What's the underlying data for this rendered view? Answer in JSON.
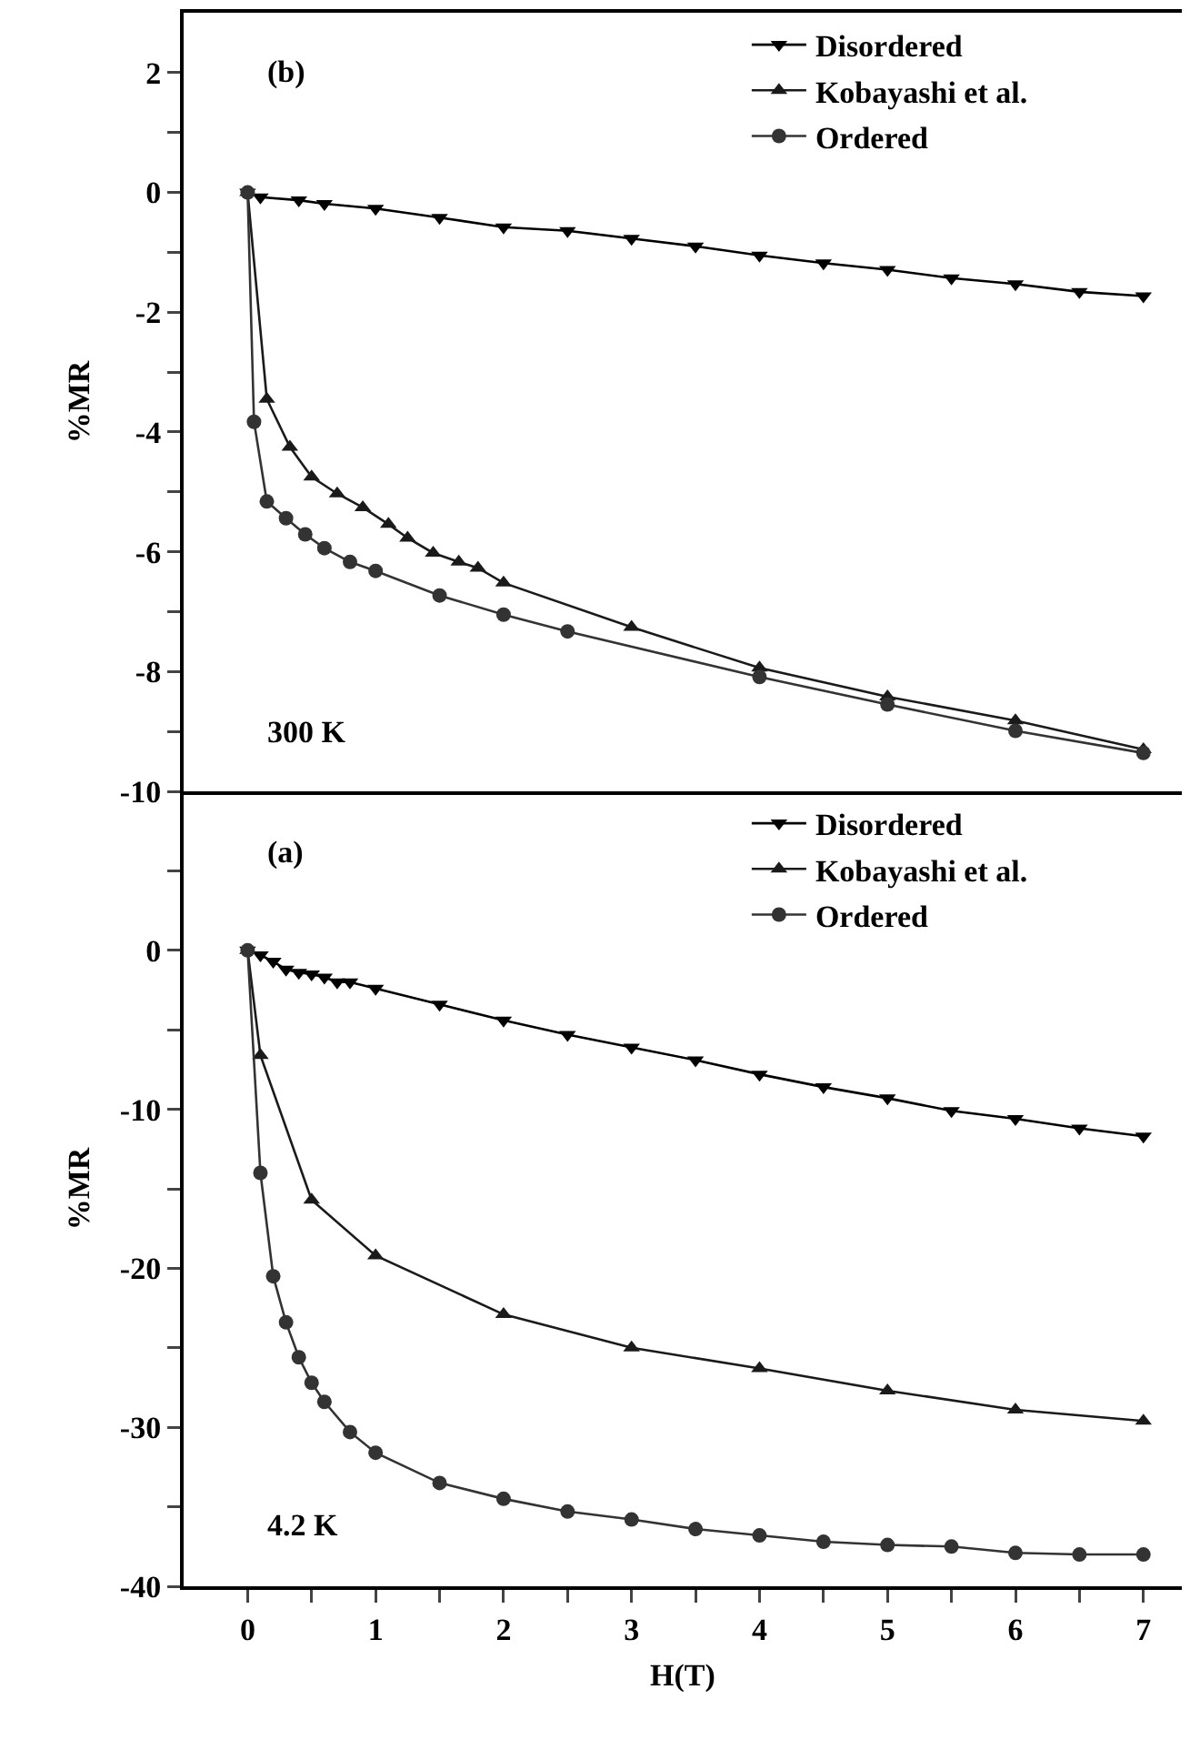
{
  "chart_data": [
    {
      "type": "line",
      "ylabel": "%MR",
      "annotations": [
        "(b)",
        "300 K"
      ],
      "xlim": [
        -0.5,
        7.3
      ],
      "xticks": [
        0,
        1,
        2,
        3,
        4,
        5,
        6,
        7
      ],
      "ylim": [
        -10,
        3
      ],
      "yticks": [
        -10,
        {
          "value": -9,
          "label": null
        },
        -8,
        {
          "value": -7,
          "label": null
        },
        -6,
        {
          "value": -5,
          "label": null
        },
        -4,
        {
          "value": -3,
          "label": null
        },
        -2,
        {
          "value": -1,
          "label": null
        },
        0,
        {
          "value": 1,
          "label": null
        },
        2
      ],
      "tick_labels": "y",
      "grid": false,
      "legend": "top right",
      "line_style": "solid",
      "series": [
        {
          "name": "Disordered",
          "color": "#000000",
          "marker": "triangle-down",
          "x": [
            0,
            0.1,
            0.4,
            0.6,
            1,
            1.5,
            2,
            2.5,
            3,
            3.5,
            4,
            4.5,
            5,
            5.5,
            6,
            6.5,
            7
          ],
          "values": [
            0,
            -0.08,
            -0.13,
            -0.19,
            -0.27,
            -0.42,
            -0.58,
            -0.64,
            -0.77,
            -0.9,
            -1.05,
            -1.18,
            -1.29,
            -1.43,
            -1.53,
            -1.66,
            -1.73
          ]
        },
        {
          "name": "Kobayashi et al.",
          "color": "#1a1a1a",
          "marker": "triangle",
          "x": [
            0,
            0.15,
            0.33,
            0.5,
            0.7,
            0.9,
            1.1,
            1.25,
            1.45,
            1.65,
            1.8,
            2,
            3,
            4,
            5,
            6,
            7
          ],
          "values": [
            0,
            -3.45,
            -4.25,
            -4.75,
            -5.03,
            -5.26,
            -5.54,
            -5.77,
            -6.02,
            -6.17,
            -6.27,
            -6.52,
            -7.26,
            -7.94,
            -8.42,
            -8.82,
            -9.3
          ]
        },
        {
          "name": "Ordered",
          "color": "#333333",
          "marker": "circle",
          "x": [
            0,
            0.05,
            0.15,
            0.3,
            0.45,
            0.6,
            0.8,
            1,
            1.5,
            2,
            2.5,
            4,
            5,
            6,
            7
          ],
          "values": [
            0,
            -3.83,
            -5.16,
            -5.44,
            -5.71,
            -5.94,
            -6.17,
            -6.32,
            -6.73,
            -7.05,
            -7.33,
            -8.09,
            -8.55,
            -8.99,
            -9.36
          ]
        }
      ]
    },
    {
      "type": "line",
      "xlabel": "H(T)",
      "ylabel": "%MR",
      "annotations": [
        "(a)",
        "4.2 K"
      ],
      "xlim": [
        -0.5,
        7.3
      ],
      "xticks": [
        0,
        {
          "value": 0.5,
          "label": null
        },
        1,
        {
          "value": 1.5,
          "label": null
        },
        2,
        {
          "value": 2.5,
          "label": null
        },
        3,
        {
          "value": 3.5,
          "label": null
        },
        4,
        {
          "value": 4.5,
          "label": null
        },
        5,
        {
          "value": 5.5,
          "label": null
        },
        6,
        {
          "value": 6.5,
          "label": null
        },
        7
      ],
      "ylim": [
        -40,
        10
      ],
      "yticks": [
        -40,
        {
          "value": -35,
          "label": null
        },
        -30,
        {
          "value": -25,
          "label": null
        },
        -20,
        {
          "value": -15,
          "label": null
        },
        -10,
        {
          "value": -5,
          "label": null
        },
        0,
        {
          "value": 5,
          "label": null
        }
      ],
      "grid": false,
      "legend": "top right",
      "line_style": "solid",
      "series": [
        {
          "name": "Disordered",
          "color": "#000000",
          "marker": "triangle-down",
          "x": [
            0,
            0.1,
            0.2,
            0.3,
            0.4,
            0.5,
            0.6,
            0.7,
            0.8,
            1,
            1.5,
            2,
            2.5,
            3,
            3.5,
            4,
            4.5,
            5,
            5.5,
            6,
            6.5,
            7
          ],
          "values": [
            0,
            -0.3,
            -0.7,
            -1.2,
            -1.4,
            -1.5,
            -1.7,
            -2.0,
            -2.0,
            -2.4,
            -3.4,
            -4.4,
            -5.3,
            -6.1,
            -6.9,
            -7.8,
            -8.6,
            -9.3,
            -10.1,
            -10.6,
            -11.2,
            -11.7
          ]
        },
        {
          "name": "Kobayashi et al.",
          "color": "#1a1a1a",
          "marker": "triangle",
          "x": [
            0,
            0.1,
            0.5,
            1,
            2,
            3,
            4,
            5,
            6,
            7
          ],
          "values": [
            0,
            -6.6,
            -15.7,
            -19.2,
            -22.9,
            -25.0,
            -26.3,
            -27.7,
            -28.9,
            -29.6
          ]
        },
        {
          "name": "Ordered",
          "color": "#333333",
          "marker": "circle",
          "x": [
            0,
            0.1,
            0.2,
            0.3,
            0.4,
            0.5,
            0.6,
            0.8,
            1,
            1.5,
            2,
            2.5,
            3,
            3.5,
            4,
            4.5,
            5,
            5.5,
            6,
            6.5,
            7
          ],
          "values": [
            0,
            -14.0,
            -20.5,
            -23.4,
            -25.6,
            -27.2,
            -28.4,
            -30.3,
            -31.6,
            -33.5,
            -34.5,
            -35.3,
            -35.8,
            -36.4,
            -36.8,
            -37.2,
            -37.4,
            -37.5,
            -37.9,
            -38.0,
            -38.0
          ]
        }
      ]
    }
  ]
}
